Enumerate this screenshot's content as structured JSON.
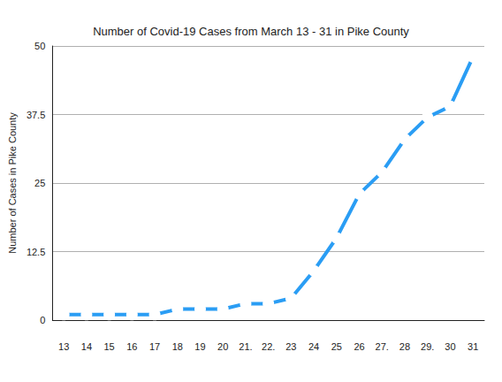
{
  "chart_data": {
    "type": "line",
    "title": "Number of Covid-19 Cases from March 13 - 31 in Pike County",
    "y_label": "Number of Cases in Pike County",
    "categories": [
      "13",
      "14",
      "15",
      "16",
      "17",
      "18",
      "19",
      "20",
      "21.",
      "22.",
      "23",
      "24",
      "25",
      "26",
      "27.",
      "28",
      "29.",
      "30",
      "31"
    ],
    "values": [
      1,
      1,
      1,
      1,
      1,
      2,
      2,
      2,
      3,
      3,
      4,
      9,
      15,
      23,
      27,
      33,
      37,
      39,
      48
    ],
    "color": "#2a9df4",
    "marker": "circle",
    "ylim": [
      0,
      50
    ],
    "yticks": [
      0,
      12.5,
      25,
      37.5,
      50
    ],
    "grid": true
  }
}
